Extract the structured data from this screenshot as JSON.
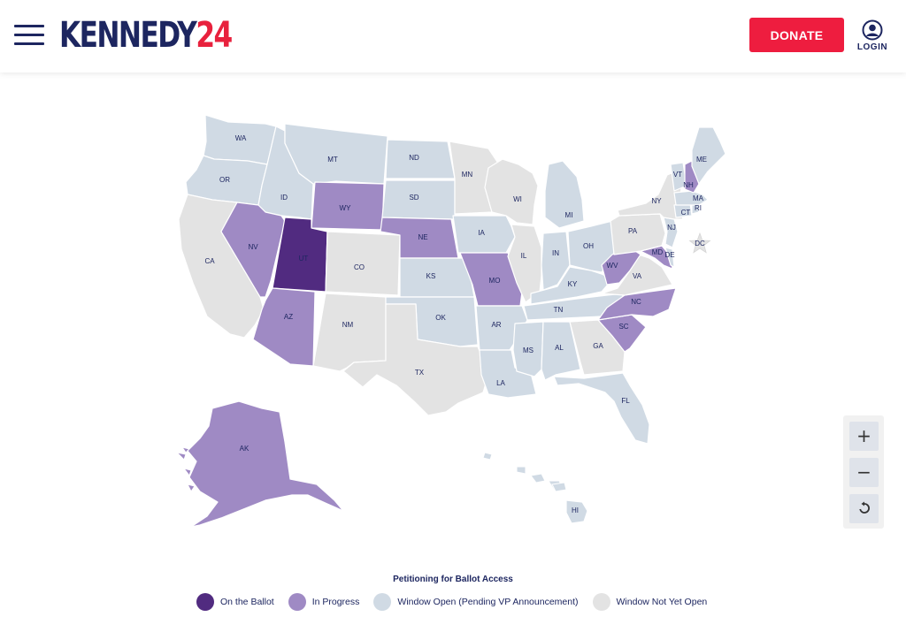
{
  "header": {
    "logo_main": "KENNEDY",
    "logo_year": "24",
    "donate_label": "DONATE",
    "login_label": "LOGIN"
  },
  "status_colors": {
    "on_ballot": "#512b80",
    "in_progress": "#9f8ac4",
    "window_open": "#d0dae4",
    "not_yet_open": "#e3e3e3",
    "border": "#ffffff"
  },
  "map": {
    "states": [
      {
        "code": "WA",
        "status": "window_open"
      },
      {
        "code": "OR",
        "status": "window_open"
      },
      {
        "code": "CA",
        "status": "not_yet_open"
      },
      {
        "code": "ID",
        "status": "window_open"
      },
      {
        "code": "NV",
        "status": "in_progress"
      },
      {
        "code": "MT",
        "status": "window_open"
      },
      {
        "code": "WY",
        "status": "in_progress"
      },
      {
        "code": "UT",
        "status": "on_ballot"
      },
      {
        "code": "AZ",
        "status": "in_progress"
      },
      {
        "code": "CO",
        "status": "not_yet_open"
      },
      {
        "code": "NM",
        "status": "not_yet_open"
      },
      {
        "code": "ND",
        "status": "window_open"
      },
      {
        "code": "SD",
        "status": "window_open"
      },
      {
        "code": "NE",
        "status": "in_progress"
      },
      {
        "code": "KS",
        "status": "window_open"
      },
      {
        "code": "OK",
        "status": "window_open"
      },
      {
        "code": "TX",
        "status": "not_yet_open"
      },
      {
        "code": "MN",
        "status": "not_yet_open"
      },
      {
        "code": "IA",
        "status": "window_open"
      },
      {
        "code": "MO",
        "status": "in_progress"
      },
      {
        "code": "AR",
        "status": "window_open"
      },
      {
        "code": "LA",
        "status": "window_open"
      },
      {
        "code": "WI",
        "status": "not_yet_open"
      },
      {
        "code": "IL",
        "status": "not_yet_open"
      },
      {
        "code": "MI",
        "status": "window_open"
      },
      {
        "code": "IN",
        "status": "window_open"
      },
      {
        "code": "OH",
        "status": "window_open"
      },
      {
        "code": "KY",
        "status": "window_open"
      },
      {
        "code": "TN",
        "status": "window_open"
      },
      {
        "code": "MS",
        "status": "window_open"
      },
      {
        "code": "AL",
        "status": "window_open"
      },
      {
        "code": "GA",
        "status": "not_yet_open"
      },
      {
        "code": "FL",
        "status": "window_open"
      },
      {
        "code": "SC",
        "status": "in_progress"
      },
      {
        "code": "NC",
        "status": "in_progress"
      },
      {
        "code": "VA",
        "status": "not_yet_open"
      },
      {
        "code": "WV",
        "status": "in_progress"
      },
      {
        "code": "MD",
        "status": "in_progress"
      },
      {
        "code": "DE",
        "status": "window_open"
      },
      {
        "code": "PA",
        "status": "not_yet_open"
      },
      {
        "code": "NJ",
        "status": "window_open"
      },
      {
        "code": "NY",
        "status": "not_yet_open"
      },
      {
        "code": "CT",
        "status": "window_open"
      },
      {
        "code": "RI",
        "status": "window_open"
      },
      {
        "code": "MA",
        "status": "window_open"
      },
      {
        "code": "VT",
        "status": "window_open"
      },
      {
        "code": "NH",
        "status": "in_progress"
      },
      {
        "code": "ME",
        "status": "window_open"
      },
      {
        "code": "AK",
        "status": "in_progress"
      },
      {
        "code": "HI",
        "status": "window_open"
      },
      {
        "code": "DC",
        "status": "not_yet_open"
      }
    ]
  },
  "zoom": {
    "zoom_in_icon": "plus-icon",
    "zoom_out_icon": "minus-icon",
    "reset_icon": "reset-icon"
  },
  "legend": {
    "title": "Petitioning for Ballot Access",
    "items": [
      {
        "label": "On the Ballot",
        "color": "#512b80"
      },
      {
        "label": "In Progress",
        "color": "#9f8ac4"
      },
      {
        "label": "Window Open (Pending VP Announcement)",
        "color": "#d0dae4"
      },
      {
        "label": "Window Not Yet Open",
        "color": "#e3e3e3"
      }
    ]
  }
}
